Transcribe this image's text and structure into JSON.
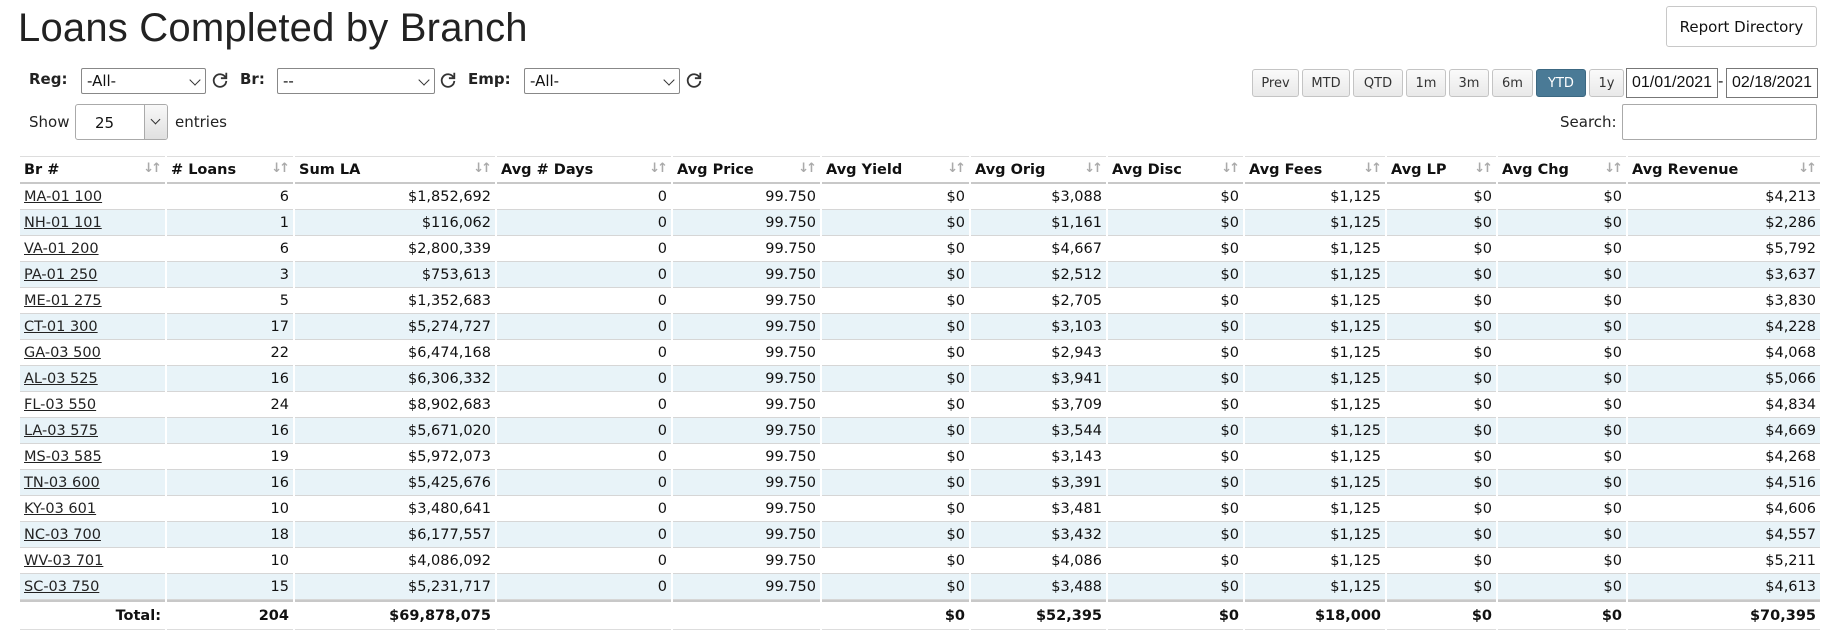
{
  "page": {
    "title": "Loans Completed by Branch",
    "report_directory_label": "Report Directory"
  },
  "filters": {
    "reg": {
      "label": "Reg:",
      "value": "-All-"
    },
    "br": {
      "label": "Br:",
      "value": "--"
    },
    "emp": {
      "label": "Emp:",
      "value": "-All-"
    }
  },
  "periods": [
    {
      "label": "Prev",
      "active": false
    },
    {
      "label": "MTD",
      "active": false
    },
    {
      "label": "QTD",
      "active": false
    },
    {
      "label": "1m",
      "active": false
    },
    {
      "label": "3m",
      "active": false
    },
    {
      "label": "6m",
      "active": false
    },
    {
      "label": "YTD",
      "active": true
    },
    {
      "label": "1y",
      "active": false
    }
  ],
  "dates": {
    "start": "01/01/2021",
    "separator": "-",
    "end": "02/18/2021"
  },
  "length": {
    "show_label": "Show",
    "value": "25",
    "entries_label": "entries"
  },
  "search": {
    "label": "Search:",
    "value": ""
  },
  "table": {
    "columns": [
      "Br #",
      "# Loans",
      "Sum LA",
      "Avg # Days",
      "Avg Price",
      "Avg Yield",
      "Avg Orig",
      "Avg Disc",
      "Avg Fees",
      "Avg LP",
      "Avg Chg",
      "Avg Revenue"
    ],
    "rows": [
      [
        "MA-01 100",
        "6",
        "$1,852,692",
        "0",
        "99.750",
        "$0",
        "$3,088",
        "$0",
        "$1,125",
        "$0",
        "$0",
        "$4,213"
      ],
      [
        "NH-01 101",
        "1",
        "$116,062",
        "0",
        "99.750",
        "$0",
        "$1,161",
        "$0",
        "$1,125",
        "$0",
        "$0",
        "$2,286"
      ],
      [
        "VA-01 200",
        "6",
        "$2,800,339",
        "0",
        "99.750",
        "$0",
        "$4,667",
        "$0",
        "$1,125",
        "$0",
        "$0",
        "$5,792"
      ],
      [
        "PA-01 250",
        "3",
        "$753,613",
        "0",
        "99.750",
        "$0",
        "$2,512",
        "$0",
        "$1,125",
        "$0",
        "$0",
        "$3,637"
      ],
      [
        "ME-01 275",
        "5",
        "$1,352,683",
        "0",
        "99.750",
        "$0",
        "$2,705",
        "$0",
        "$1,125",
        "$0",
        "$0",
        "$3,830"
      ],
      [
        "CT-01 300",
        "17",
        "$5,274,727",
        "0",
        "99.750",
        "$0",
        "$3,103",
        "$0",
        "$1,125",
        "$0",
        "$0",
        "$4,228"
      ],
      [
        "GA-03 500",
        "22",
        "$6,474,168",
        "0",
        "99.750",
        "$0",
        "$2,943",
        "$0",
        "$1,125",
        "$0",
        "$0",
        "$4,068"
      ],
      [
        "AL-03 525",
        "16",
        "$6,306,332",
        "0",
        "99.750",
        "$0",
        "$3,941",
        "$0",
        "$1,125",
        "$0",
        "$0",
        "$5,066"
      ],
      [
        "FL-03 550",
        "24",
        "$8,902,683",
        "0",
        "99.750",
        "$0",
        "$3,709",
        "$0",
        "$1,125",
        "$0",
        "$0",
        "$4,834"
      ],
      [
        "LA-03 575",
        "16",
        "$5,671,020",
        "0",
        "99.750",
        "$0",
        "$3,544",
        "$0",
        "$1,125",
        "$0",
        "$0",
        "$4,669"
      ],
      [
        "MS-03 585",
        "19",
        "$5,972,073",
        "0",
        "99.750",
        "$0",
        "$3,143",
        "$0",
        "$1,125",
        "$0",
        "$0",
        "$4,268"
      ],
      [
        "TN-03 600",
        "16",
        "$5,425,676",
        "0",
        "99.750",
        "$0",
        "$3,391",
        "$0",
        "$1,125",
        "$0",
        "$0",
        "$4,516"
      ],
      [
        "KY-03 601",
        "10",
        "$3,480,641",
        "0",
        "99.750",
        "$0",
        "$3,481",
        "$0",
        "$1,125",
        "$0",
        "$0",
        "$4,606"
      ],
      [
        "NC-03 700",
        "18",
        "$6,177,557",
        "0",
        "99.750",
        "$0",
        "$3,432",
        "$0",
        "$1,125",
        "$0",
        "$0",
        "$4,557"
      ],
      [
        "WV-03 701",
        "10",
        "$4,086,092",
        "0",
        "99.750",
        "$0",
        "$4,086",
        "$0",
        "$1,125",
        "$0",
        "$0",
        "$5,211"
      ],
      [
        "SC-03 750",
        "15",
        "$5,231,717",
        "0",
        "99.750",
        "$0",
        "$3,488",
        "$0",
        "$1,125",
        "$0",
        "$0",
        "$4,613"
      ]
    ],
    "totals": [
      "Total:",
      "204",
      "$69,878,075",
      "",
      "",
      "$0",
      "$52,395",
      "$0",
      "$18,000",
      "$0",
      "$0",
      "$70,395"
    ]
  },
  "colors": {
    "stripe": "#e8f3f8",
    "active_period": "#4a7a96"
  },
  "icons": {
    "refresh": "refresh-icon",
    "sort": "sort-icon",
    "dropdown": "chevron-down-icon"
  }
}
